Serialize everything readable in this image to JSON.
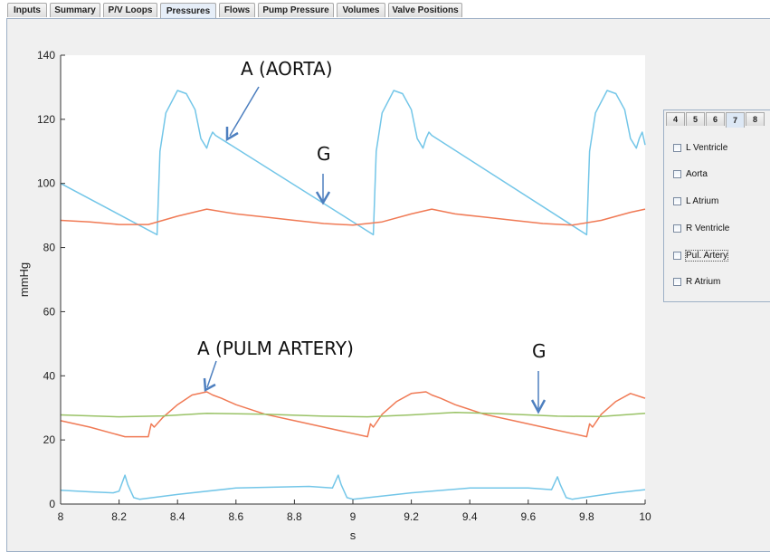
{
  "tabs": [
    "Inputs",
    "Summary",
    "P/V Loops",
    "Pressures",
    "Flows",
    "Pump Pressure",
    "Volumes",
    "Valve Positions"
  ],
  "active_tab": "Pressures",
  "side_panel": {
    "tabs": [
      "4",
      "5",
      "6",
      "7",
      "8"
    ],
    "active_tab": "7",
    "items": [
      "L Ventricle",
      "Aorta",
      "L Atrium",
      "R Ventricle",
      "Pul. Artery",
      "R Atrium"
    ],
    "focused_item": "Pul. Artery"
  },
  "annotations": [
    "A (AORTA)",
    "G",
    "A (PULM ARTERY)",
    "G"
  ],
  "colors": {
    "aorta_blue": "#73c6e8",
    "orange": "#f07a55",
    "green": "#99c266",
    "arrow_blue": "#4d7fbf"
  },
  "chart_data": {
    "type": "line",
    "title": "",
    "xlabel": "s",
    "ylabel": "mmHg",
    "xlim": [
      8,
      10
    ],
    "ylim": [
      0,
      140
    ],
    "xticks": [
      "8",
      "8.2",
      "8.4",
      "8.6",
      "8.8",
      "9",
      "9.2",
      "9.4",
      "9.6",
      "9.8",
      "10"
    ],
    "yticks": [
      "0",
      "20",
      "40",
      "60",
      "80",
      "100",
      "120",
      "140"
    ],
    "grid": false,
    "beat_onsets_s": [
      8.33,
      9.07,
      9.8
    ],
    "series": [
      {
        "color": "#73c6e8",
        "x": [
          8.0,
          8.33,
          8.335,
          8.34,
          8.36,
          8.4,
          8.43,
          8.46,
          8.48,
          8.5,
          8.51,
          8.52,
          8.53,
          9.07,
          9.075,
          9.08,
          9.1,
          9.14,
          9.17,
          9.2,
          9.22,
          9.24,
          9.25,
          9.26,
          9.27,
          9.8,
          9.805,
          9.81,
          9.83,
          9.87,
          9.9,
          9.93,
          9.95,
          9.97,
          9.98,
          9.99,
          10.0
        ],
        "y": [
          100,
          84,
          97,
          110,
          122,
          129,
          128,
          123,
          114,
          111,
          114,
          116,
          115,
          84,
          97,
          110,
          122,
          129,
          128,
          123,
          114,
          111,
          114,
          116,
          115,
          84,
          97,
          110,
          122,
          129,
          128,
          123,
          114,
          111,
          114,
          116,
          112
        ]
      },
      {
        "color": "#f07a55",
        "x": [
          8.0,
          8.1,
          8.2,
          8.3,
          8.4,
          8.5,
          8.6,
          8.7,
          8.8,
          8.9,
          9.0,
          9.1,
          9.2,
          9.27,
          9.35,
          9.45,
          9.55,
          9.65,
          9.75,
          9.85,
          9.95,
          10.0
        ],
        "y": [
          88.5,
          88,
          87.2,
          87.2,
          89.8,
          92,
          90.5,
          89.5,
          88.5,
          87.5,
          87,
          88,
          90.5,
          92,
          90.5,
          89.5,
          88.5,
          87.5,
          87,
          88.5,
          91,
          92
        ]
      },
      {
        "color": "#f07a55",
        "x": [
          8.0,
          8.1,
          8.22,
          8.3,
          8.31,
          8.32,
          8.35,
          8.4,
          8.45,
          8.5,
          8.52,
          8.55,
          8.6,
          8.7,
          8.8,
          8.9,
          9.05,
          9.06,
          9.07,
          9.1,
          9.15,
          9.2,
          9.25,
          9.27,
          9.3,
          9.35,
          9.45,
          9.55,
          9.65,
          9.8,
          9.81,
          9.82,
          9.85,
          9.9,
          9.95,
          10.0
        ],
        "y": [
          26,
          24,
          21,
          21,
          25,
          24,
          27,
          31,
          34,
          35,
          34,
          33,
          31,
          28,
          26,
          24,
          21,
          25,
          24,
          28,
          32,
          34.5,
          35,
          34,
          33,
          31,
          28,
          26,
          24,
          21,
          25,
          24,
          28,
          32,
          34.5,
          33
        ]
      },
      {
        "color": "#99c266",
        "x": [
          8.0,
          8.2,
          8.35,
          8.5,
          8.7,
          8.9,
          9.05,
          9.2,
          9.35,
          9.5,
          9.7,
          9.85,
          10.0
        ],
        "y": [
          27.8,
          27.2,
          27.5,
          28.3,
          28.0,
          27.4,
          27.2,
          27.8,
          28.6,
          28.2,
          27.4,
          27.3,
          28.3
        ]
      },
      {
        "color": "#73c6e8",
        "x": [
          8.0,
          8.1,
          8.18,
          8.2,
          8.22,
          8.23,
          8.25,
          8.27,
          8.4,
          8.6,
          8.85,
          8.93,
          8.95,
          8.96,
          8.98,
          9.0,
          9.2,
          9.4,
          9.6,
          9.68,
          9.7,
          9.71,
          9.73,
          9.75,
          9.9,
          10.0
        ],
        "y": [
          4.3,
          3.8,
          3.5,
          4,
          9,
          6,
          2,
          1.5,
          3,
          5,
          5.5,
          5,
          9,
          6,
          2,
          1.5,
          3.5,
          5,
          5,
          4.5,
          8.5,
          6,
          2,
          1.5,
          3.5,
          4.5
        ]
      }
    ]
  }
}
